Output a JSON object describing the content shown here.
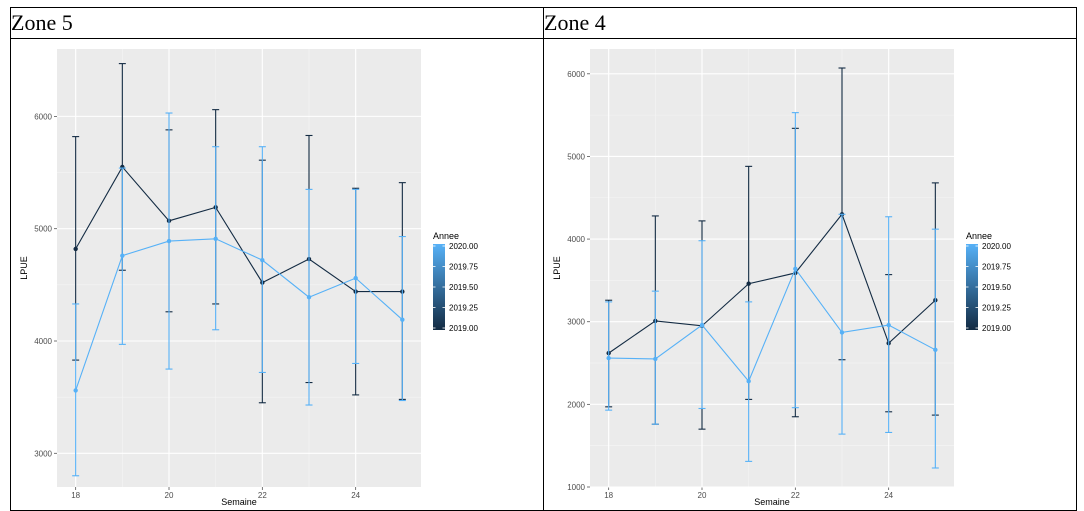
{
  "colors": {
    "panel_bg": "#ebebeb",
    "grid_major": "#ffffff",
    "line_2019": "#132b43",
    "line_2020": "#56b1f7"
  },
  "panels": [
    {
      "title": "Zone 5"
    },
    {
      "title": "Zone 4"
    }
  ],
  "chart_data": [
    {
      "type": "line",
      "title": "",
      "xlabel": "Semaine",
      "ylabel": "LPUE",
      "xlim": [
        17.6,
        25.4
      ],
      "ylim": [
        2700,
        6600
      ],
      "xticks": [
        18,
        20,
        22,
        24
      ],
      "yticks": [
        3000,
        4000,
        5000,
        6000
      ],
      "grid": true,
      "legend": {
        "title": "Annee",
        "position": "right",
        "labels": [
          "2020.00",
          "2019.75",
          "2019.50",
          "2019.25",
          "2019.00"
        ]
      },
      "x": [
        18,
        19,
        20,
        21,
        22,
        23,
        24,
        25
      ],
      "series": [
        {
          "name": "2019.00",
          "values": [
            4820,
            5550,
            5070,
            5190,
            4520,
            4730,
            4440,
            4440
          ],
          "ymin": [
            3830,
            4630,
            4260,
            4330,
            3450,
            3630,
            3520,
            3480
          ],
          "ymax": [
            5820,
            6470,
            5880,
            6060,
            5610,
            5830,
            5360,
            5410
          ]
        },
        {
          "name": "2020.00",
          "values": [
            3560,
            4760,
            4890,
            4910,
            4720,
            4390,
            4560,
            4190
          ],
          "ymin": [
            2800,
            3970,
            3750,
            4100,
            3720,
            3430,
            3800,
            3470
          ],
          "ymax": [
            4330,
            5540,
            6030,
            5730,
            5730,
            5350,
            5350,
            4930
          ]
        }
      ]
    },
    {
      "type": "line",
      "title": "",
      "xlabel": "Semaine",
      "ylabel": "LPUE",
      "xlim": [
        17.6,
        25.4
      ],
      "ylim": [
        1000,
        6300
      ],
      "xticks": [
        18,
        20,
        22,
        24
      ],
      "yticks": [
        1000,
        2000,
        3000,
        4000,
        5000,
        6000
      ],
      "grid": true,
      "legend": {
        "title": "Annee",
        "position": "right",
        "labels": [
          "2020.00",
          "2019.75",
          "2019.50",
          "2019.25",
          "2019.00"
        ]
      },
      "x": [
        18,
        19,
        20,
        21,
        22,
        23,
        24,
        25
      ],
      "series": [
        {
          "name": "2019.00",
          "values": [
            2620,
            3010,
            2950,
            3460,
            3590,
            4300,
            2740,
            3260
          ],
          "ymin": [
            1970,
            1760,
            1700,
            2060,
            1850,
            2540,
            1910,
            1870
          ],
          "ymax": [
            3260,
            4280,
            4220,
            4880,
            5340,
            6070,
            3570,
            4680
          ]
        },
        {
          "name": "2020.00",
          "values": [
            2560,
            2550,
            2960,
            2280,
            3640,
            2870,
            2960,
            2660
          ],
          "ymin": [
            1930,
            1760,
            1950,
            1310,
            1960,
            1640,
            1660,
            1230
          ],
          "ymax": [
            3240,
            3370,
            3980,
            3240,
            5530,
            4300,
            4270,
            4120
          ]
        }
      ]
    }
  ]
}
